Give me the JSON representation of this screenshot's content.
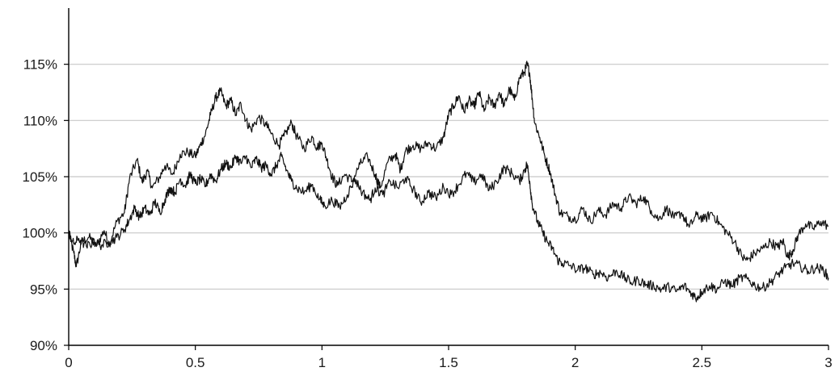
{
  "chart_data": {
    "type": "line",
    "title": "",
    "xlabel": "",
    "ylabel": "",
    "xlim": [
      0,
      3
    ],
    "ylim": [
      90,
      120
    ],
    "x_ticks": [
      0,
      0.5,
      1,
      1.5,
      2,
      2.5,
      3
    ],
    "x_tick_labels": [
      "0",
      "0.5",
      "1",
      "1.5",
      "2",
      "2.5",
      "3"
    ],
    "y_ticks": [
      90,
      95,
      100,
      105,
      110,
      115
    ],
    "y_tick_labels": [
      "90%",
      "95%",
      "100%",
      "105%",
      "110%",
      "115%"
    ],
    "grid": "horizontal",
    "legend": "none",
    "series": [
      {
        "color": "#111111",
        "points": [
          [
            0.0,
            100.0
          ],
          [
            0.02,
            98.2
          ],
          [
            0.03,
            97.0
          ],
          [
            0.05,
            99.2
          ],
          [
            0.08,
            99.6
          ],
          [
            0.11,
            98.9
          ],
          [
            0.14,
            100.2
          ],
          [
            0.16,
            99.0
          ],
          [
            0.19,
            101.0
          ],
          [
            0.22,
            101.8
          ],
          [
            0.24,
            104.8
          ],
          [
            0.27,
            106.5
          ],
          [
            0.29,
            104.5
          ],
          [
            0.31,
            105.5
          ],
          [
            0.33,
            104.0
          ],
          [
            0.36,
            105.0
          ],
          [
            0.38,
            106.0
          ],
          [
            0.41,
            105.2
          ],
          [
            0.44,
            107.0
          ],
          [
            0.47,
            107.2
          ],
          [
            0.5,
            106.8
          ],
          [
            0.52,
            107.8
          ],
          [
            0.54,
            108.8
          ],
          [
            0.56,
            110.5
          ],
          [
            0.58,
            112.0
          ],
          [
            0.6,
            112.6
          ],
          [
            0.62,
            111.3
          ],
          [
            0.64,
            111.8
          ],
          [
            0.66,
            110.5
          ],
          [
            0.68,
            111.5
          ],
          [
            0.7,
            110.0
          ],
          [
            0.72,
            109.2
          ],
          [
            0.75,
            110.3
          ],
          [
            0.78,
            109.6
          ],
          [
            0.8,
            108.8
          ],
          [
            0.83,
            107.8
          ],
          [
            0.85,
            108.6
          ],
          [
            0.88,
            109.8
          ],
          [
            0.9,
            108.6
          ],
          [
            0.93,
            107.5
          ],
          [
            0.96,
            108.6
          ],
          [
            0.98,
            107.6
          ],
          [
            1.0,
            108.0
          ],
          [
            1.02,
            106.5
          ],
          [
            1.04,
            105.0
          ],
          [
            1.06,
            104.2
          ],
          [
            1.09,
            105.2
          ],
          [
            1.12,
            104.6
          ],
          [
            1.15,
            106.1
          ],
          [
            1.18,
            106.8
          ],
          [
            1.21,
            105.2
          ],
          [
            1.23,
            104.0
          ],
          [
            1.26,
            106.3
          ],
          [
            1.29,
            107.0
          ],
          [
            1.31,
            105.6
          ],
          [
            1.33,
            107.3
          ],
          [
            1.36,
            107.8
          ],
          [
            1.39,
            107.5
          ],
          [
            1.42,
            108.0
          ],
          [
            1.45,
            107.5
          ],
          [
            1.48,
            108.5
          ],
          [
            1.5,
            110.5
          ],
          [
            1.52,
            111.3
          ],
          [
            1.54,
            112.2
          ],
          [
            1.56,
            110.8
          ],
          [
            1.58,
            111.8
          ],
          [
            1.6,
            111.2
          ],
          [
            1.62,
            112.5
          ],
          [
            1.64,
            110.8
          ],
          [
            1.66,
            112.0
          ],
          [
            1.68,
            111.2
          ],
          [
            1.7,
            112.5
          ],
          [
            1.72,
            111.3
          ],
          [
            1.74,
            112.8
          ],
          [
            1.76,
            111.8
          ],
          [
            1.78,
            113.8
          ],
          [
            1.8,
            114.3
          ],
          [
            1.81,
            115.0
          ],
          [
            1.82,
            114.2
          ],
          [
            1.83,
            112.0
          ],
          [
            1.84,
            109.8
          ],
          [
            1.86,
            108.5
          ],
          [
            1.88,
            106.8
          ],
          [
            1.9,
            105.5
          ],
          [
            1.92,
            103.5
          ],
          [
            1.94,
            101.8
          ],
          [
            1.97,
            101.5
          ],
          [
            2.0,
            101.2
          ],
          [
            2.03,
            102.2
          ],
          [
            2.06,
            101.0
          ],
          [
            2.09,
            102.0
          ],
          [
            2.12,
            101.6
          ],
          [
            2.15,
            102.6
          ],
          [
            2.18,
            102.2
          ],
          [
            2.21,
            103.2
          ],
          [
            2.24,
            102.6
          ],
          [
            2.27,
            103.2
          ],
          [
            2.3,
            102.0
          ],
          [
            2.33,
            101.2
          ],
          [
            2.36,
            102.2
          ],
          [
            2.39,
            101.3
          ],
          [
            2.42,
            101.8
          ],
          [
            2.45,
            100.5
          ],
          [
            2.48,
            101.6
          ],
          [
            2.51,
            101.2
          ],
          [
            2.54,
            101.8
          ],
          [
            2.57,
            100.8
          ],
          [
            2.6,
            100.0
          ],
          [
            2.63,
            99.2
          ],
          [
            2.66,
            97.8
          ],
          [
            2.68,
            97.6
          ],
          [
            2.71,
            98.2
          ],
          [
            2.74,
            98.6
          ],
          [
            2.77,
            99.2
          ],
          [
            2.8,
            98.7
          ],
          [
            2.82,
            99.3
          ],
          [
            2.84,
            97.8
          ],
          [
            2.86,
            98.5
          ],
          [
            2.88,
            99.8
          ],
          [
            2.91,
            100.8
          ],
          [
            2.94,
            100.4
          ],
          [
            2.97,
            101.0
          ],
          [
            3.0,
            100.6
          ]
        ]
      },
      {
        "color": "#111111",
        "points": [
          [
            0.0,
            100.0
          ],
          [
            0.02,
            99.0
          ],
          [
            0.04,
            99.5
          ],
          [
            0.07,
            98.8
          ],
          [
            0.1,
            99.2
          ],
          [
            0.13,
            98.9
          ],
          [
            0.16,
            99.2
          ],
          [
            0.19,
            99.6
          ],
          [
            0.22,
            100.3
          ],
          [
            0.24,
            101.2
          ],
          [
            0.26,
            102.2
          ],
          [
            0.28,
            101.4
          ],
          [
            0.3,
            102.2
          ],
          [
            0.32,
            101.6
          ],
          [
            0.34,
            102.8
          ],
          [
            0.36,
            101.8
          ],
          [
            0.38,
            103.0
          ],
          [
            0.4,
            104.0
          ],
          [
            0.42,
            103.6
          ],
          [
            0.44,
            104.8
          ],
          [
            0.46,
            104.2
          ],
          [
            0.48,
            105.2
          ],
          [
            0.5,
            104.4
          ],
          [
            0.52,
            104.8
          ],
          [
            0.54,
            104.2
          ],
          [
            0.56,
            105.2
          ],
          [
            0.58,
            104.6
          ],
          [
            0.6,
            105.6
          ],
          [
            0.62,
            106.2
          ],
          [
            0.64,
            105.8
          ],
          [
            0.66,
            106.8
          ],
          [
            0.68,
            106.2
          ],
          [
            0.7,
            106.8
          ],
          [
            0.72,
            105.8
          ],
          [
            0.74,
            106.6
          ],
          [
            0.76,
            105.8
          ],
          [
            0.78,
            106.0
          ],
          [
            0.8,
            105.2
          ],
          [
            0.82,
            106.0
          ],
          [
            0.84,
            106.8
          ],
          [
            0.86,
            105.6
          ],
          [
            0.88,
            104.6
          ],
          [
            0.9,
            104.0
          ],
          [
            0.93,
            103.6
          ],
          [
            0.96,
            104.3
          ],
          [
            0.99,
            103.0
          ],
          [
            1.01,
            102.4
          ],
          [
            1.04,
            102.9
          ],
          [
            1.07,
            102.3
          ],
          [
            1.1,
            103.4
          ],
          [
            1.13,
            104.8
          ],
          [
            1.16,
            103.6
          ],
          [
            1.19,
            102.9
          ],
          [
            1.21,
            104.0
          ],
          [
            1.24,
            103.4
          ],
          [
            1.27,
            104.6
          ],
          [
            1.3,
            104.0
          ],
          [
            1.33,
            104.9
          ],
          [
            1.36,
            103.9
          ],
          [
            1.39,
            102.7
          ],
          [
            1.42,
            103.6
          ],
          [
            1.45,
            103.1
          ],
          [
            1.48,
            104.1
          ],
          [
            1.51,
            103.4
          ],
          [
            1.54,
            104.3
          ],
          [
            1.57,
            105.3
          ],
          [
            1.6,
            104.5
          ],
          [
            1.63,
            105.2
          ],
          [
            1.66,
            103.8
          ],
          [
            1.69,
            104.6
          ],
          [
            1.72,
            105.8
          ],
          [
            1.75,
            105.3
          ],
          [
            1.78,
            104.6
          ],
          [
            1.8,
            105.6
          ],
          [
            1.81,
            106.1
          ],
          [
            1.82,
            104.6
          ],
          [
            1.83,
            102.6
          ],
          [
            1.85,
            101.1
          ],
          [
            1.87,
            100.1
          ],
          [
            1.89,
            99.2
          ],
          [
            1.91,
            98.6
          ],
          [
            1.93,
            97.6
          ],
          [
            1.95,
            97.3
          ],
          [
            1.98,
            97.1
          ],
          [
            2.01,
            96.7
          ],
          [
            2.04,
            96.9
          ],
          [
            2.07,
            96.3
          ],
          [
            2.1,
            96.5
          ],
          [
            2.13,
            96.0
          ],
          [
            2.16,
            96.6
          ],
          [
            2.19,
            96.1
          ],
          [
            2.22,
            95.6
          ],
          [
            2.25,
            95.8
          ],
          [
            2.28,
            95.4
          ],
          [
            2.31,
            95.3
          ],
          [
            2.34,
            95.0
          ],
          [
            2.37,
            95.2
          ],
          [
            2.4,
            94.8
          ],
          [
            2.43,
            95.3
          ],
          [
            2.46,
            94.6
          ],
          [
            2.48,
            94.2
          ],
          [
            2.5,
            94.8
          ],
          [
            2.53,
            95.3
          ],
          [
            2.56,
            95.0
          ],
          [
            2.59,
            95.7
          ],
          [
            2.62,
            95.3
          ],
          [
            2.65,
            96.0
          ],
          [
            2.68,
            95.9
          ],
          [
            2.71,
            95.3
          ],
          [
            2.74,
            95.1
          ],
          [
            2.77,
            95.6
          ],
          [
            2.8,
            96.3
          ],
          [
            2.83,
            96.9
          ],
          [
            2.86,
            97.3
          ],
          [
            2.89,
            97.0
          ],
          [
            2.92,
            96.6
          ],
          [
            2.95,
            96.9
          ],
          [
            2.98,
            96.7
          ],
          [
            3.0,
            96.0
          ]
        ]
      }
    ]
  }
}
